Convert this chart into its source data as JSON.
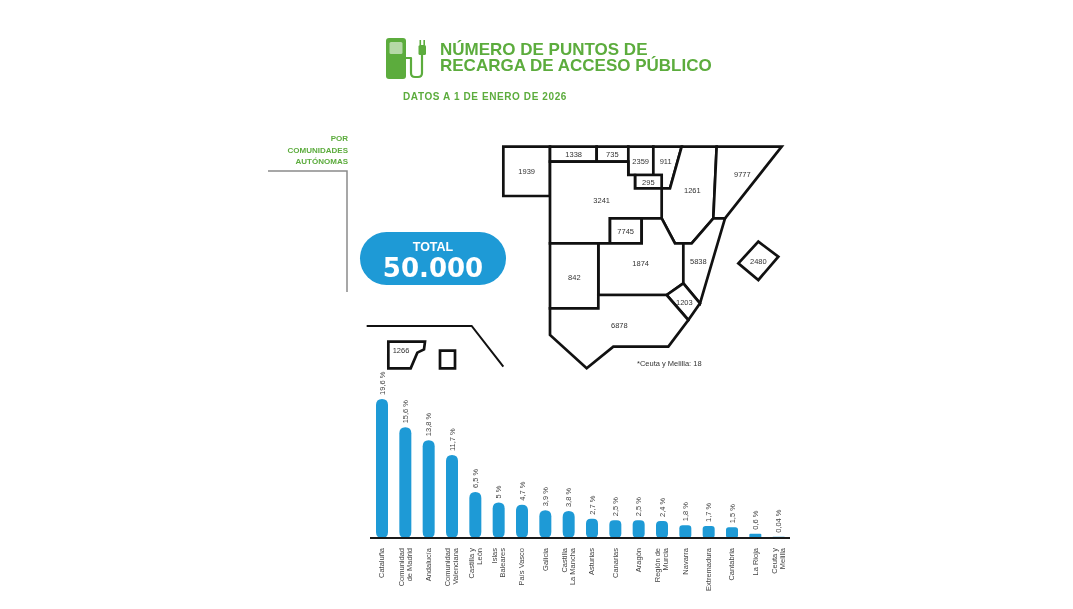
{
  "chart_data": [
    {
      "type": "other",
      "title": "NÚMERO DE PUNTOS DE RECARGA DE ACCESO PÚBLICO",
      "subtitle": "DATOS A 1 DE ENERO DE 2026",
      "annotations": [
        "POR COMUNIDADES AUTÓNOMAS",
        "TOTAL",
        "50.000",
        "1939",
        "1338",
        "735",
        "2359",
        "911",
        "295",
        "1261",
        "9777",
        "3241",
        "7745",
        "1874",
        "842",
        "5838",
        "1203",
        "6878",
        "2480",
        "1266",
        "*Ceuta y Melilla: 18"
      ]
    },
    {
      "type": "bar",
      "categories": [
        "Cataluña",
        "Comunidad de Madrid",
        "Andalucía",
        "Comunidad Valenciana",
        "Castilla y León",
        "Islas Baleares",
        "País Vasco",
        "Galicia",
        "Castilla La Mancha",
        "Asturias",
        "Canarias",
        "Aragón",
        "Región de Murcia",
        "Navarra",
        "Extremadura",
        "Cantabria",
        "La Rioja",
        "Ceuta y Melilla"
      ],
      "values": [
        19.6,
        15.6,
        13.8,
        11.7,
        6.5,
        5,
        4.7,
        3.9,
        3.8,
        2.7,
        2.5,
        2.5,
        2.4,
        1.8,
        1.7,
        1.5,
        0.6,
        0.04
      ],
      "value_labels": [
        "19,6 %",
        "15,6 %",
        "13,8 %",
        "11,7 %",
        "6,5 %",
        "5 %",
        "4,7 %",
        "3,9 %",
        "3,8 %",
        "2,7 %",
        "2,5 %",
        "2,5 %",
        "2,4 %",
        "1,8 %",
        "1,7 %",
        "1,5 %",
        "0,6 %",
        "0,04 %"
      ],
      "color": "#1e9ad6"
    }
  ]
}
